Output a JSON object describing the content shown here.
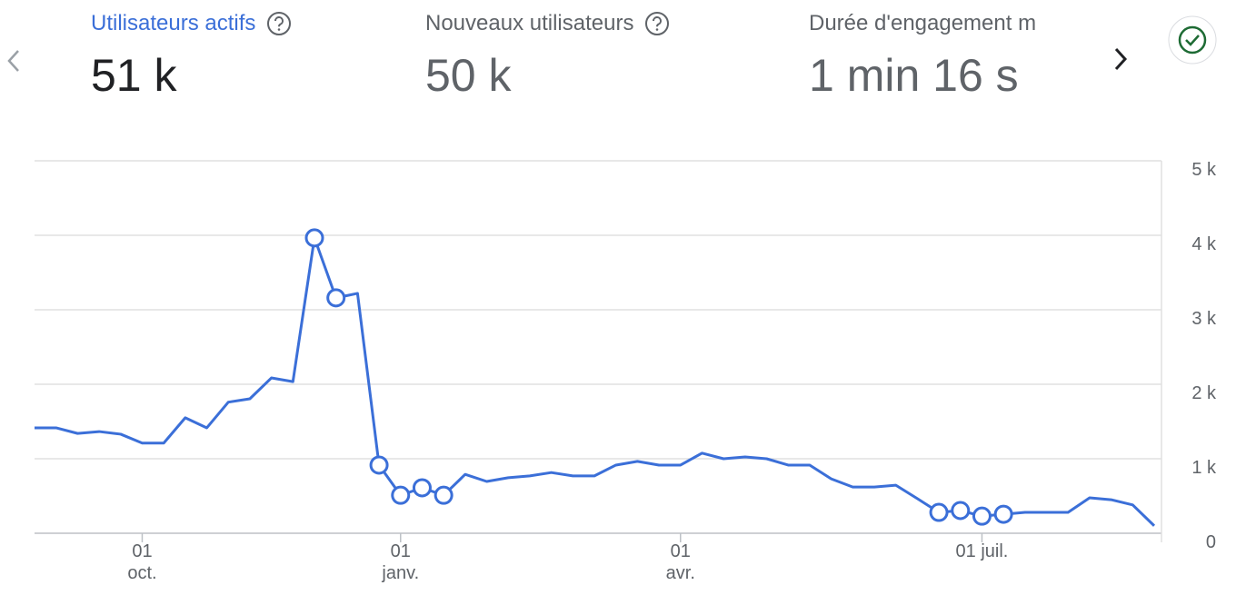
{
  "metrics": [
    {
      "label": "Utilisateurs actifs",
      "value": "51 k"
    },
    {
      "label": "Nouveaux utilisateurs",
      "value": "50 k"
    },
    {
      "label": "Durée d'engagement m",
      "value": "1 min 16 s"
    }
  ],
  "chart_data": {
    "type": "line",
    "categories": [
      null,
      null,
      null,
      null,
      null,
      "01 oct.",
      null,
      null,
      null,
      null,
      null,
      null,
      null,
      null,
      null,
      null,
      null,
      "01 janv.",
      null,
      null,
      null,
      null,
      null,
      null,
      null,
      null,
      null,
      null,
      null,
      null,
      "01 avr.",
      null,
      null,
      null,
      null,
      null,
      null,
      null,
      null,
      null,
      null,
      null,
      null,
      null,
      "01 juil.",
      null,
      null,
      null,
      null,
      null,
      null,
      null,
      null
    ],
    "series": [
      {
        "name": "Utilisateurs actifs",
        "color": "#3b6fd8",
        "values": [
          1415,
          1415,
          1340,
          1365,
          1330,
          1210,
          1210,
          1550,
          1415,
          1760,
          1805,
          2085,
          2035,
          3965,
          3160,
          3220,
          915,
          510,
          610,
          510,
          790,
          695,
          745,
          770,
          815,
          770,
          770,
          915,
          965,
          915,
          915,
          1075,
          1000,
          1025,
          1000,
          915,
          915,
          730,
          620,
          620,
          645,
          465,
          280,
          305,
          230,
          255,
          280,
          280,
          280,
          475,
          450,
          380,
          100
        ]
      }
    ],
    "highlighted": [
      13,
      14,
      16,
      17,
      18,
      19,
      42,
      43,
      44,
      45
    ],
    "ylim": [
      0,
      5000
    ],
    "yticks": [
      0,
      {
        "value": 1000,
        "label": "1 k"
      },
      {
        "value": 2000,
        "label": "2 k"
      },
      {
        "value": 3000,
        "label": "3 k"
      },
      {
        "value": 4000,
        "label": "4 k"
      },
      {
        "value": 5000,
        "label": "5 k"
      }
    ],
    "grid": true
  }
}
